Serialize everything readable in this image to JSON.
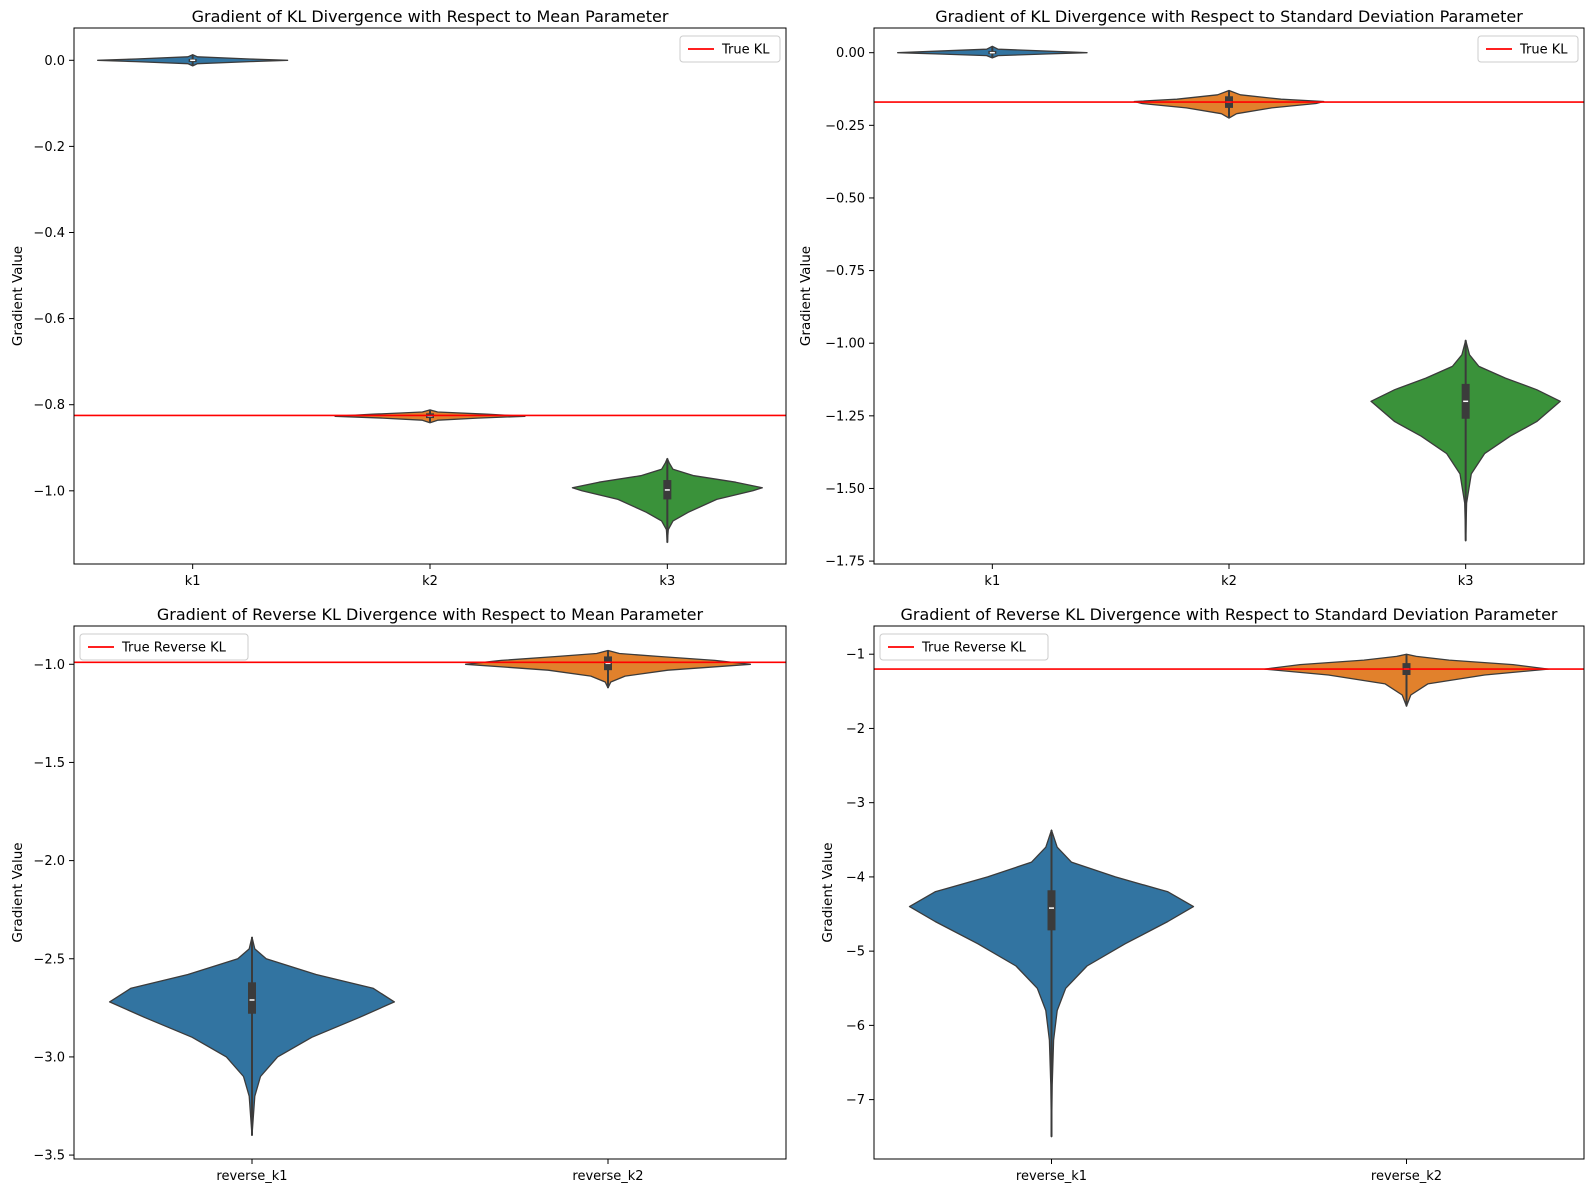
{
  "colors": {
    "k1": "#3274a1",
    "k2": "#e1812c",
    "k3": "#3a923a",
    "reference_line": "#ff0000",
    "violin_edge": "#3b3b3b",
    "box": "#3b3b3b",
    "median": "#ffffff"
  },
  "chart_data": [
    {
      "type": "violin",
      "title": "Gradient of KL Divergence with Respect to Mean Parameter",
      "xlabel": "",
      "ylabel": "Gradient Value",
      "ylim": [
        -1.17,
        0.075
      ],
      "yticks": [
        0.0,
        -0.2,
        -0.4,
        -0.6,
        -0.8,
        -1.0
      ],
      "ytick_labels": [
        "0.0",
        "−0.2",
        "−0.4",
        "−0.6",
        "−0.8",
        "−1.0"
      ],
      "categories": [
        "k1",
        "k2",
        "k3"
      ],
      "reference_line": {
        "label": "True KL",
        "value": -0.825
      },
      "legend": "top-right",
      "grid": false,
      "violins": [
        {
          "category": "k1",
          "color_key": "k1",
          "min": -0.013,
          "max": 0.013,
          "q1": -0.003,
          "median": 0.0,
          "q3": 0.003,
          "profile": [
            [
              -0.013,
              0.0
            ],
            [
              -0.008,
              0.05
            ],
            [
              -0.003,
              0.6
            ],
            [
              0.0,
              1.0
            ],
            [
              0.003,
              0.6
            ],
            [
              0.008,
              0.05
            ],
            [
              0.013,
              0.0
            ]
          ]
        },
        {
          "category": "k2",
          "color_key": "k2",
          "min": -0.842,
          "max": -0.812,
          "q1": -0.831,
          "median": -0.826,
          "q3": -0.82,
          "profile": [
            [
              -0.842,
              0.0
            ],
            [
              -0.836,
              0.08
            ],
            [
              -0.831,
              0.5
            ],
            [
              -0.827,
              1.0
            ],
            [
              -0.822,
              0.6
            ],
            [
              -0.817,
              0.08
            ],
            [
              -0.812,
              0.0
            ]
          ]
        },
        {
          "category": "k3",
          "color_key": "k3",
          "min": -1.12,
          "max": -0.925,
          "q1": -1.02,
          "median": -0.998,
          "q3": -0.975,
          "profile": [
            [
              -1.12,
              0.0
            ],
            [
              -1.09,
              0.01
            ],
            [
              -1.07,
              0.06
            ],
            [
              -1.05,
              0.22
            ],
            [
              -1.02,
              0.52
            ],
            [
              -1.0,
              0.9
            ],
            [
              -0.993,
              1.0
            ],
            [
              -0.98,
              0.72
            ],
            [
              -0.965,
              0.28
            ],
            [
              -0.95,
              0.06
            ],
            [
              -0.935,
              0.02
            ],
            [
              -0.925,
              0.0
            ]
          ]
        }
      ]
    },
    {
      "type": "violin",
      "title": "Gradient of KL Divergence with Respect to Standard Deviation Parameter",
      "xlabel": "",
      "ylabel": "Gradient Value",
      "ylim": [
        -1.76,
        0.085
      ],
      "yticks": [
        0.0,
        -0.25,
        -0.5,
        -0.75,
        -1.0,
        -1.25,
        -1.5,
        -1.75
      ],
      "ytick_labels": [
        "0.00",
        "−0.25",
        "−0.50",
        "−0.75",
        "−1.00",
        "−1.25",
        "−1.50",
        "−1.75"
      ],
      "categories": [
        "k1",
        "k2",
        "k3"
      ],
      "reference_line": {
        "label": "True KL",
        "value": -0.17
      },
      "legend": "top-right",
      "grid": false,
      "violins": [
        {
          "category": "k1",
          "color_key": "k1",
          "min": -0.018,
          "max": 0.022,
          "q1": -0.004,
          "median": 0.0,
          "q3": 0.006,
          "profile": [
            [
              -0.018,
              0.0
            ],
            [
              -0.01,
              0.06
            ],
            [
              -0.004,
              0.6
            ],
            [
              0.0,
              1.0
            ],
            [
              0.005,
              0.6
            ],
            [
              0.012,
              0.06
            ],
            [
              0.022,
              0.0
            ]
          ]
        },
        {
          "category": "k2",
          "color_key": "k2",
          "min": -0.225,
          "max": -0.13,
          "q1": -0.19,
          "median": -0.17,
          "q3": -0.15,
          "profile": [
            [
              -0.225,
              0.0
            ],
            [
              -0.21,
              0.08
            ],
            [
              -0.19,
              0.45
            ],
            [
              -0.175,
              0.92
            ],
            [
              -0.168,
              1.0
            ],
            [
              -0.16,
              0.55
            ],
            [
              -0.145,
              0.12
            ],
            [
              -0.13,
              0.0
            ]
          ]
        },
        {
          "category": "k3",
          "color_key": "k3",
          "min": -1.68,
          "max": -0.99,
          "q1": -1.26,
          "median": -1.2,
          "q3": -1.14,
          "profile": [
            [
              -1.68,
              0.0
            ],
            [
              -1.55,
              0.01
            ],
            [
              -1.45,
              0.06
            ],
            [
              -1.38,
              0.2
            ],
            [
              -1.32,
              0.47
            ],
            [
              -1.27,
              0.75
            ],
            [
              -1.2,
              1.0
            ],
            [
              -1.16,
              0.75
            ],
            [
              -1.12,
              0.42
            ],
            [
              -1.08,
              0.14
            ],
            [
              -1.04,
              0.04
            ],
            [
              -0.99,
              0.0
            ]
          ]
        }
      ]
    },
    {
      "type": "violin",
      "title": "Gradient of Reverse KL Divergence with Respect to Mean Parameter",
      "xlabel": "",
      "ylabel": "Gradient Value",
      "ylim": [
        -3.52,
        -0.805
      ],
      "yticks": [
        -1.0,
        -1.5,
        -2.0,
        -2.5,
        -3.0,
        -3.5
      ],
      "ytick_labels": [
        "−1.0",
        "−1.5",
        "−2.0",
        "−2.5",
        "−3.0",
        "−3.5"
      ],
      "categories": [
        "reverse_k1",
        "reverse_k2"
      ],
      "reference_line": {
        "label": "True Reverse KL",
        "value": -0.99
      },
      "legend": "top-left",
      "grid": false,
      "violins": [
        {
          "category": "reverse_k1",
          "color_key": "k1",
          "min": -3.4,
          "max": -2.39,
          "q1": -2.78,
          "median": -2.71,
          "q3": -2.62,
          "profile": [
            [
              -3.4,
              0.0
            ],
            [
              -3.2,
              0.02
            ],
            [
              -3.1,
              0.06
            ],
            [
              -3.0,
              0.18
            ],
            [
              -2.9,
              0.42
            ],
            [
              -2.8,
              0.75
            ],
            [
              -2.72,
              1.0
            ],
            [
              -2.65,
              0.85
            ],
            [
              -2.58,
              0.45
            ],
            [
              -2.5,
              0.1
            ],
            [
              -2.45,
              0.02
            ],
            [
              -2.39,
              0.0
            ]
          ]
        },
        {
          "category": "reverse_k2",
          "color_key": "k2",
          "min": -1.12,
          "max": -0.93,
          "q1": -1.03,
          "median": -0.995,
          "q3": -0.96,
          "profile": [
            [
              -1.12,
              0.0
            ],
            [
              -1.09,
              0.02
            ],
            [
              -1.06,
              0.12
            ],
            [
              -1.03,
              0.42
            ],
            [
              -1.0,
              1.0
            ],
            [
              -0.98,
              0.75
            ],
            [
              -0.96,
              0.35
            ],
            [
              -0.945,
              0.08
            ],
            [
              -0.93,
              0.0
            ]
          ]
        }
      ]
    },
    {
      "type": "violin",
      "title": "Gradient of Reverse KL Divergence with Respect to Standard Deviation Parameter",
      "xlabel": "",
      "ylabel": "Gradient Value",
      "ylim": [
        -7.8,
        -0.62
      ],
      "yticks": [
        -1,
        -2,
        -3,
        -4,
        -5,
        -6,
        -7
      ],
      "ytick_labels": [
        "−1",
        "−2",
        "−3",
        "−4",
        "−5",
        "−6",
        "−7"
      ],
      "categories": [
        "reverse_k1",
        "reverse_k2"
      ],
      "reference_line": {
        "label": "True Reverse KL",
        "value": -1.2
      },
      "legend": "top-left",
      "grid": false,
      "violins": [
        {
          "category": "reverse_k1",
          "color_key": "k1",
          "min": -7.5,
          "max": -3.37,
          "q1": -4.72,
          "median": -4.42,
          "q3": -4.18,
          "profile": [
            [
              -7.5,
              0.0
            ],
            [
              -6.8,
              0.005
            ],
            [
              -6.2,
              0.015
            ],
            [
              -5.8,
              0.04
            ],
            [
              -5.5,
              0.1
            ],
            [
              -5.2,
              0.25
            ],
            [
              -4.9,
              0.52
            ],
            [
              -4.6,
              0.82
            ],
            [
              -4.4,
              1.0
            ],
            [
              -4.2,
              0.82
            ],
            [
              -4.0,
              0.45
            ],
            [
              -3.8,
              0.14
            ],
            [
              -3.6,
              0.04
            ],
            [
              -3.37,
              0.0
            ]
          ]
        },
        {
          "category": "reverse_k2",
          "color_key": "k2",
          "min": -1.7,
          "max": -1.0,
          "q1": -1.28,
          "median": -1.2,
          "q3": -1.12,
          "profile": [
            [
              -1.7,
              0.0
            ],
            [
              -1.55,
              0.03
            ],
            [
              -1.4,
              0.15
            ],
            [
              -1.28,
              0.55
            ],
            [
              -1.2,
              1.0
            ],
            [
              -1.14,
              0.75
            ],
            [
              -1.08,
              0.3
            ],
            [
              -1.03,
              0.07
            ],
            [
              -1.0,
              0.0
            ]
          ]
        }
      ]
    }
  ]
}
